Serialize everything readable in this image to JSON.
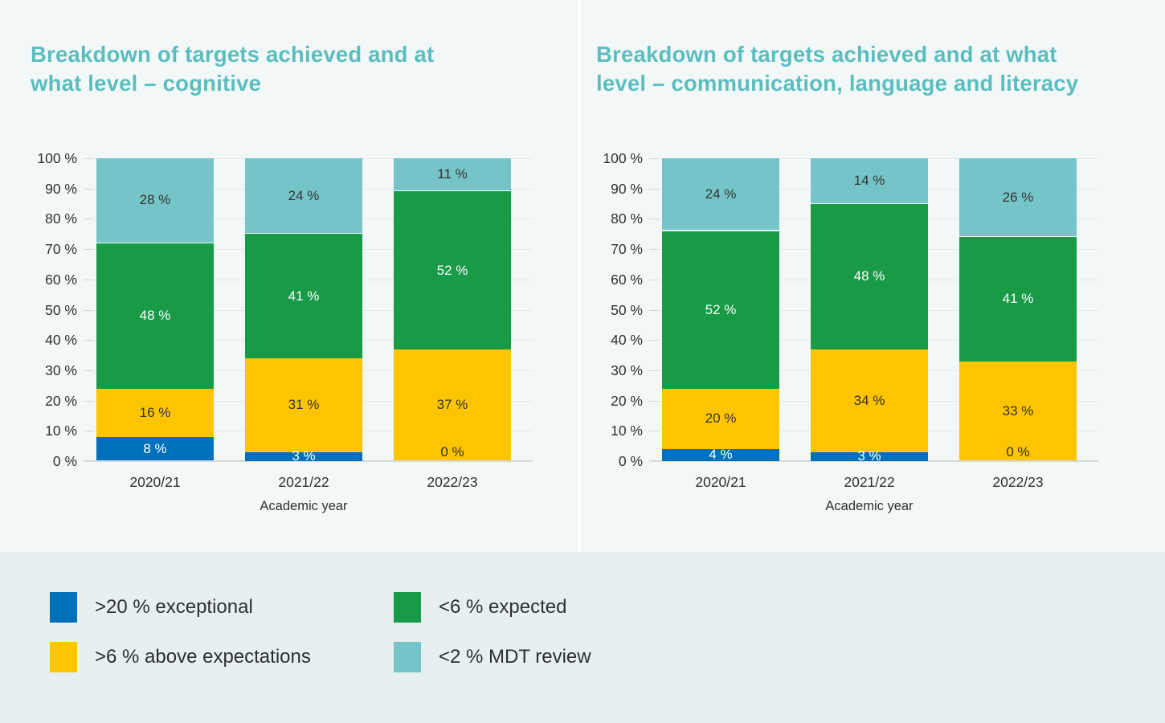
{
  "colors": {
    "background": "#f2f8f8",
    "legend_band": "#e6f0f1",
    "divider": "#ffffff",
    "title": "#5cbdbf",
    "text": "#2f2f2f",
    "gridline": "#e3e9e9",
    "axis_line": "#d4dada",
    "series": {
      "exceptional": "#0070ba",
      "above_expectations": "#fdc400",
      "expected": "#189a47",
      "mdt_review": "#75c5c8"
    },
    "series_label_colors": {
      "exceptional": "#ffffff",
      "above_expectations": "#333333",
      "expected": "#ffffff",
      "mdt_review": "#333333"
    }
  },
  "chart_data": [
    {
      "type": "bar",
      "stacked": true,
      "title": "Breakdown of targets achieved and at what level – cognitive",
      "title_lines": [
        "Breakdown of targets achieved and at",
        "what level – cognitive"
      ],
      "xlabel": "Academic year",
      "ylabel": "",
      "ylim": [
        0,
        100
      ],
      "grid": true,
      "y_tick_labels": [
        "100 %",
        "90 %",
        "80 %",
        "70 %",
        "60 %",
        "50 %",
        "40 %",
        "30 %",
        "20 %",
        "10 %",
        "0 %"
      ],
      "categories": [
        "2020/21",
        "2021/22",
        "2022/23"
      ],
      "series": [
        {
          "name": ">20 % exceptional",
          "color_key": "exceptional",
          "values": [
            8,
            3,
            0
          ]
        },
        {
          "name": ">6 % above expectations",
          "color_key": "above_expectations",
          "values": [
            16,
            31,
            37
          ]
        },
        {
          "name": "<6 % expected",
          "color_key": "expected",
          "values": [
            48,
            41,
            52
          ]
        },
        {
          "name": "<2 % MDT review",
          "color_key": "mdt_review",
          "values": [
            28,
            24,
            11
          ]
        }
      ],
      "legend_position": "bottom-shared"
    },
    {
      "type": "bar",
      "stacked": true,
      "title": "Breakdown of targets achieved and at what level – communication, language and literacy",
      "title_lines": [
        "Breakdown of targets achieved and at what",
        "level – communication, language and literacy"
      ],
      "xlabel": "Academic year",
      "ylabel": "",
      "ylim": [
        0,
        100
      ],
      "grid": true,
      "y_tick_labels": [
        "100 %",
        "90 %",
        "80 %",
        "70 %",
        "60 %",
        "50 %",
        "40 %",
        "30 %",
        "20 %",
        "10 %",
        "0 %"
      ],
      "categories": [
        "2020/21",
        "2021/22",
        "2022/23"
      ],
      "series": [
        {
          "name": ">20 % exceptional",
          "color_key": "exceptional",
          "values": [
            4,
            3,
            0
          ]
        },
        {
          "name": ">6 % above expectations",
          "color_key": "above_expectations",
          "values": [
            20,
            34,
            33
          ]
        },
        {
          "name": "<6 % expected",
          "color_key": "expected",
          "values": [
            52,
            48,
            41
          ]
        },
        {
          "name": "<2 % MDT review",
          "color_key": "mdt_review",
          "values": [
            24,
            14,
            26
          ]
        }
      ],
      "legend_position": "bottom-shared"
    }
  ],
  "legend": {
    "items": [
      {
        "label": ">20 % exceptional",
        "color_key": "exceptional"
      },
      {
        "label": ">6 % above expectations",
        "color_key": "above_expectations"
      },
      {
        "label": "<6 % expected",
        "color_key": "expected"
      },
      {
        "label": "<2 % MDT review",
        "color_key": "mdt_review"
      }
    ]
  },
  "value_suffix": " %"
}
